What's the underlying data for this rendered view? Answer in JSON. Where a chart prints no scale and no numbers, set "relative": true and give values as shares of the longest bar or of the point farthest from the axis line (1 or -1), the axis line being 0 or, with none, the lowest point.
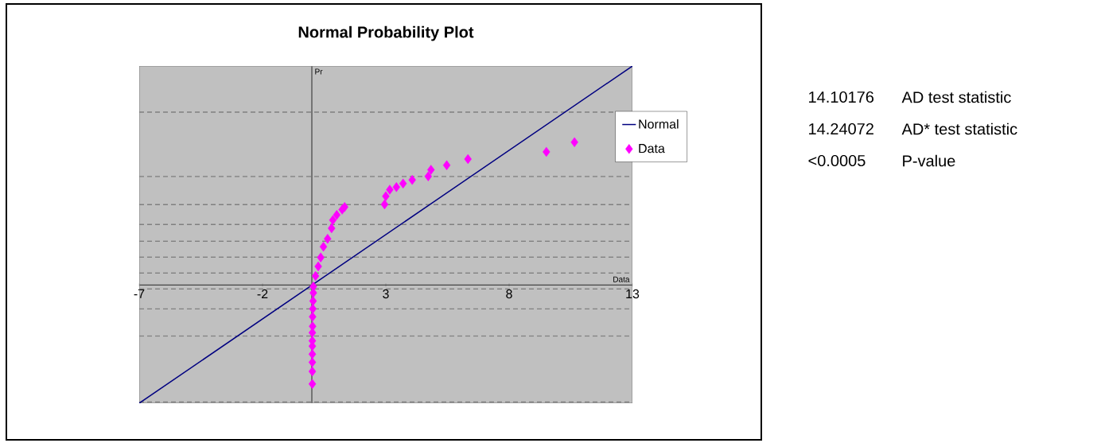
{
  "chart_data": {
    "type": "scatter",
    "title": "Normal Probability Plot",
    "xlabel": "Data",
    "ylabel": "Pr",
    "relative": true,
    "xlim": [
      -7,
      13
    ],
    "xticks": [
      -7,
      -2,
      3,
      8,
      13
    ],
    "legend": "right",
    "series": [
      {
        "name": "Normal",
        "type": "line",
        "color": "#000080",
        "x": [
          -7,
          13
        ],
        "values": [
          -0.54,
          1
        ]
      },
      {
        "name": "Data",
        "marker": "diamond",
        "color": "#ff00ff",
        "x": [
          0.02,
          0.02,
          0.02,
          0.02,
          0.02,
          0.02,
          0.02,
          0.03,
          0.03,
          0.04,
          0.05,
          0.06,
          0.06,
          0.15,
          0.26,
          0.36,
          0.47,
          0.64,
          0.8,
          0.85,
          1.01,
          1.23,
          1.33,
          2.95,
          3.0,
          3.16,
          3.43,
          3.7,
          4.07,
          4.72,
          4.83,
          5.47,
          6.33,
          9.51,
          10.65
        ],
        "values": [
          -0.452,
          -0.395,
          -0.353,
          -0.316,
          -0.279,
          -0.255,
          -0.218,
          -0.189,
          -0.145,
          -0.109,
          -0.073,
          -0.036,
          -0.007,
          0.041,
          0.085,
          0.126,
          0.175,
          0.211,
          0.259,
          0.296,
          0.32,
          0.344,
          0.356,
          0.368,
          0.405,
          0.435,
          0.447,
          0.463,
          0.48,
          0.496,
          0.526,
          0.547,
          0.575,
          0.608,
          0.652
        ]
      }
    ],
    "ref_lines": [
      {
        "axis": "y",
        "value": 0.789,
        "color": "#808080",
        "line_style": "dashed"
      },
      {
        "axis": "y",
        "value": 0.495,
        "color": "#808080",
        "line_style": "dashed"
      },
      {
        "axis": "y",
        "value": 0.367,
        "color": "#808080",
        "line_style": "dashed"
      },
      {
        "axis": "y",
        "value": 0.276,
        "color": "#808080",
        "line_style": "dashed"
      },
      {
        "axis": "y",
        "value": 0.2,
        "color": "#808080",
        "line_style": "dashed"
      },
      {
        "axis": "y",
        "value": 0.127,
        "color": "#808080",
        "line_style": "dashed"
      },
      {
        "axis": "y",
        "value": 0.055,
        "color": "#808080",
        "line_style": "dashed"
      },
      {
        "axis": "y",
        "value": -0.018,
        "color": "#808080",
        "line_style": "dashed"
      },
      {
        "axis": "y",
        "value": -0.109,
        "color": "#808080",
        "line_style": "dashed"
      },
      {
        "axis": "y",
        "value": -0.233,
        "color": "#808080",
        "line_style": "dashed"
      },
      {
        "axis": "y",
        "value": -0.535,
        "color": "#808080",
        "line_style": "dashed"
      }
    ],
    "annotations": [
      "14.10176",
      "AD test statistic",
      "14.24072",
      "AD* test statistic",
      "<0.0005",
      "P-value"
    ]
  }
}
